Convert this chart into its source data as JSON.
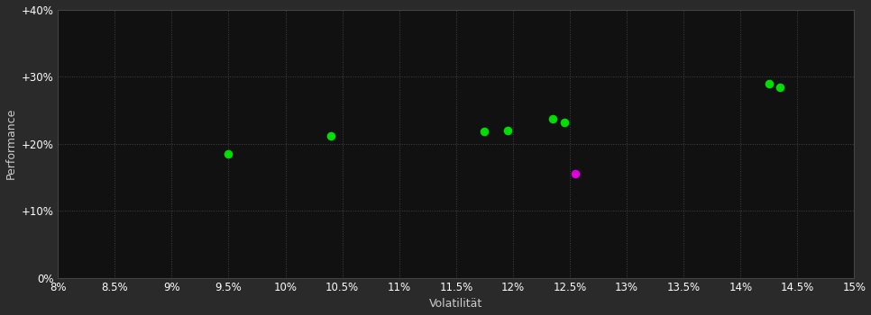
{
  "background_color": "#2a2a2a",
  "plot_bg_color": "#111111",
  "grid_color": "#444444",
  "xlabel": "Volatilität",
  "ylabel": "Performance",
  "xlim": [
    0.08,
    0.15
  ],
  "ylim": [
    0.0,
    0.4
  ],
  "xticks": [
    0.08,
    0.085,
    0.09,
    0.095,
    0.1,
    0.105,
    0.11,
    0.115,
    0.12,
    0.125,
    0.13,
    0.135,
    0.14,
    0.145,
    0.15
  ],
  "xtick_labels": [
    "8%",
    "8.5%",
    "9%",
    "9.5%",
    "10%",
    "10.5%",
    "11%",
    "11.5%",
    "12%",
    "12.5%",
    "13%",
    "13.5%",
    "14%",
    "14.5%",
    "15%"
  ],
  "yticks": [
    0.0,
    0.1,
    0.2,
    0.3,
    0.4
  ],
  "ytick_labels": [
    "0%",
    "+10%",
    "+20%",
    "+30%",
    "+40%"
  ],
  "green_points": [
    [
      0.095,
      0.185
    ],
    [
      0.104,
      0.212
    ],
    [
      0.1175,
      0.218
    ],
    [
      0.1195,
      0.219
    ],
    [
      0.1235,
      0.237
    ],
    [
      0.1245,
      0.232
    ],
    [
      0.1425,
      0.29
    ],
    [
      0.1435,
      0.284
    ]
  ],
  "magenta_points": [
    [
      0.1255,
      0.155
    ]
  ],
  "point_color_green": "#00dd00",
  "point_color_magenta": "#dd00dd",
  "marker_size": 48,
  "tick_color": "#ffffff",
  "tick_fontsize": 8.5,
  "label_fontsize": 9,
  "label_color": "#cccccc"
}
